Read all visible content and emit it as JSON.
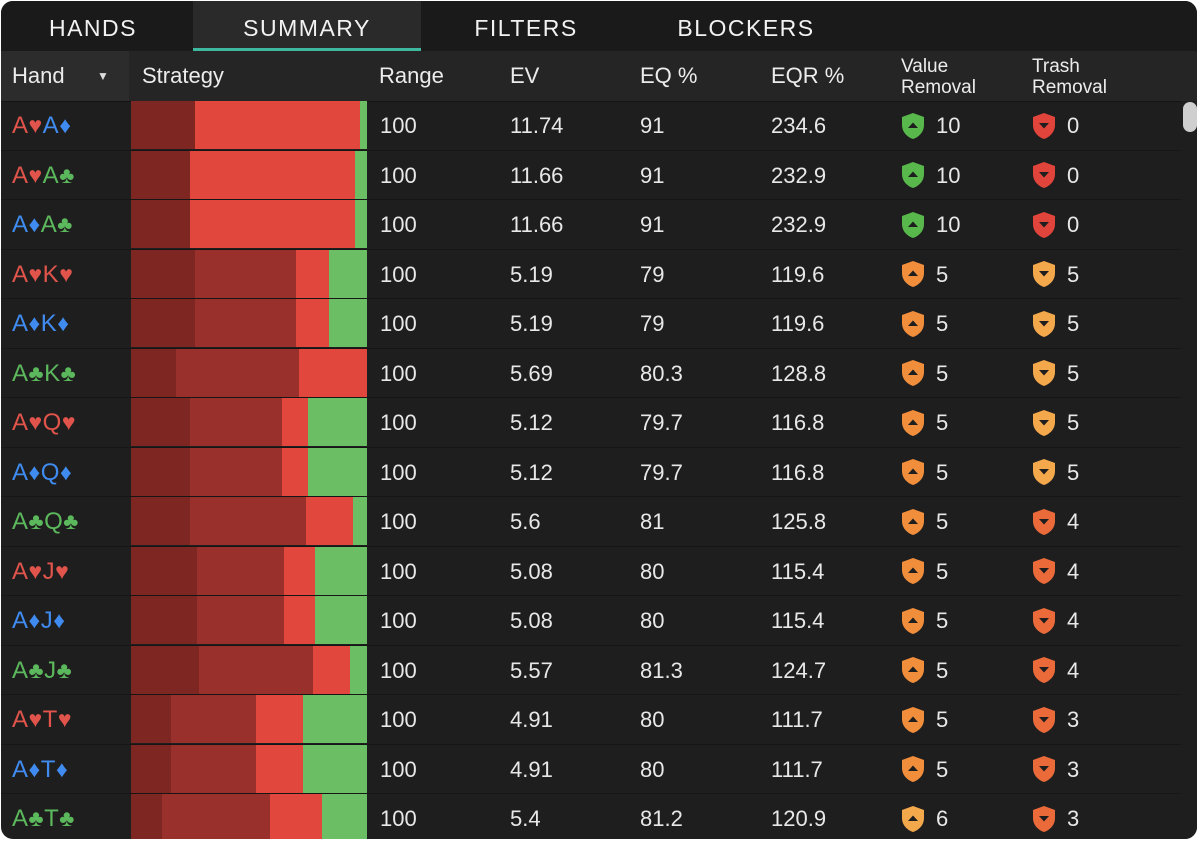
{
  "tabs": [
    {
      "label": "HANDS"
    },
    {
      "label": "SUMMARY"
    },
    {
      "label": "FILTERS"
    },
    {
      "label": "BLOCKERS"
    }
  ],
  "active_tab": "SUMMARY",
  "columns": {
    "hand": "Hand",
    "strategy": "Strategy",
    "range": "Range",
    "ev": "EV",
    "eq": "EQ %",
    "eqr": "EQR %",
    "value_removal": [
      "Value",
      "Removal"
    ],
    "trash_removal": [
      "Trash",
      "Removal"
    ]
  },
  "colors": {
    "suit_red": "#e0544b",
    "suit_blue": "#3f8bf0",
    "suit_green": "#5cb85c",
    "strat_dark": "#7d2622",
    "strat_mid": "#9a302b",
    "strat_red": "#e2473e",
    "strat_green": "#6cbe65",
    "shield_green": "#58b84b",
    "shield_orange": "#f08e3c",
    "shield_light_orange": "#f4a84c",
    "shield_red": "#e0443a",
    "shield_redorange": "#ea6a3a",
    "accent_tab": "#3fb8a0"
  },
  "rows": [
    {
      "cards": [
        {
          "r": "A",
          "s": "♥",
          "c": "red"
        },
        {
          "r": "A",
          "s": "♦",
          "c": "blue"
        }
      ],
      "strategy": [
        0.27,
        0,
        0.7,
        0.03
      ],
      "range": "100",
      "ev": "11.74",
      "eq": "91",
      "eqr": "234.6",
      "value_removal": {
        "n": "10",
        "icon": "shield-up-icon",
        "color": "shield_green"
      },
      "trash_removal": {
        "n": "0",
        "icon": "shield-down-icon",
        "color": "shield_red"
      }
    },
    {
      "cards": [
        {
          "r": "A",
          "s": "♥",
          "c": "red"
        },
        {
          "r": "A",
          "s": "♣",
          "c": "green"
        }
      ],
      "strategy": [
        0.25,
        0,
        0.7,
        0.05
      ],
      "range": "100",
      "ev": "11.66",
      "eq": "91",
      "eqr": "232.9",
      "value_removal": {
        "n": "10",
        "icon": "shield-up-icon",
        "color": "shield_green"
      },
      "trash_removal": {
        "n": "0",
        "icon": "shield-down-icon",
        "color": "shield_red"
      }
    },
    {
      "cards": [
        {
          "r": "A",
          "s": "♦",
          "c": "blue"
        },
        {
          "r": "A",
          "s": "♣",
          "c": "green"
        }
      ],
      "strategy": [
        0.25,
        0,
        0.7,
        0.05
      ],
      "range": "100",
      "ev": "11.66",
      "eq": "91",
      "eqr": "232.9",
      "value_removal": {
        "n": "10",
        "icon": "shield-up-icon",
        "color": "shield_green"
      },
      "trash_removal": {
        "n": "0",
        "icon": "shield-down-icon",
        "color": "shield_red"
      }
    },
    {
      "cards": [
        {
          "r": "A",
          "s": "♥",
          "c": "red"
        },
        {
          "r": "K",
          "s": "♥",
          "c": "red"
        }
      ],
      "strategy": [
        0.27,
        0.43,
        0.14,
        0.16
      ],
      "range": "100",
      "ev": "5.19",
      "eq": "79",
      "eqr": "119.6",
      "value_removal": {
        "n": "5",
        "icon": "shield-up-icon",
        "color": "shield_orange"
      },
      "trash_removal": {
        "n": "5",
        "icon": "shield-down-icon",
        "color": "shield_light_orange"
      }
    },
    {
      "cards": [
        {
          "r": "A",
          "s": "♦",
          "c": "blue"
        },
        {
          "r": "K",
          "s": "♦",
          "c": "blue"
        }
      ],
      "strategy": [
        0.27,
        0.43,
        0.14,
        0.16
      ],
      "range": "100",
      "ev": "5.19",
      "eq": "79",
      "eqr": "119.6",
      "value_removal": {
        "n": "5",
        "icon": "shield-up-icon",
        "color": "shield_orange"
      },
      "trash_removal": {
        "n": "5",
        "icon": "shield-down-icon",
        "color": "shield_light_orange"
      }
    },
    {
      "cards": [
        {
          "r": "A",
          "s": "♣",
          "c": "green"
        },
        {
          "r": "K",
          "s": "♣",
          "c": "green"
        }
      ],
      "strategy": [
        0.19,
        0.52,
        0.29,
        0
      ],
      "range": "100",
      "ev": "5.69",
      "eq": "80.3",
      "eqr": "128.8",
      "value_removal": {
        "n": "5",
        "icon": "shield-up-icon",
        "color": "shield_orange"
      },
      "trash_removal": {
        "n": "5",
        "icon": "shield-down-icon",
        "color": "shield_light_orange"
      }
    },
    {
      "cards": [
        {
          "r": "A",
          "s": "♥",
          "c": "red"
        },
        {
          "r": "Q",
          "s": "♥",
          "c": "red"
        }
      ],
      "strategy": [
        0.25,
        0.39,
        0.11,
        0.25
      ],
      "range": "100",
      "ev": "5.12",
      "eq": "79.7",
      "eqr": "116.8",
      "value_removal": {
        "n": "5",
        "icon": "shield-up-icon",
        "color": "shield_orange"
      },
      "trash_removal": {
        "n": "5",
        "icon": "shield-down-icon",
        "color": "shield_light_orange"
      }
    },
    {
      "cards": [
        {
          "r": "A",
          "s": "♦",
          "c": "blue"
        },
        {
          "r": "Q",
          "s": "♦",
          "c": "blue"
        }
      ],
      "strategy": [
        0.25,
        0.39,
        0.11,
        0.25
      ],
      "range": "100",
      "ev": "5.12",
      "eq": "79.7",
      "eqr": "116.8",
      "value_removal": {
        "n": "5",
        "icon": "shield-up-icon",
        "color": "shield_orange"
      },
      "trash_removal": {
        "n": "5",
        "icon": "shield-down-icon",
        "color": "shield_light_orange"
      }
    },
    {
      "cards": [
        {
          "r": "A",
          "s": "♣",
          "c": "green"
        },
        {
          "r": "Q",
          "s": "♣",
          "c": "green"
        }
      ],
      "strategy": [
        0.25,
        0.49,
        0.2,
        0.06
      ],
      "range": "100",
      "ev": "5.6",
      "eq": "81",
      "eqr": "125.8",
      "value_removal": {
        "n": "5",
        "icon": "shield-up-icon",
        "color": "shield_orange"
      },
      "trash_removal": {
        "n": "4",
        "icon": "shield-down-icon",
        "color": "shield_redorange"
      }
    },
    {
      "cards": [
        {
          "r": "A",
          "s": "♥",
          "c": "red"
        },
        {
          "r": "J",
          "s": "♥",
          "c": "red"
        }
      ],
      "strategy": [
        0.28,
        0.37,
        0.13,
        0.22
      ],
      "range": "100",
      "ev": "5.08",
      "eq": "80",
      "eqr": "115.4",
      "value_removal": {
        "n": "5",
        "icon": "shield-up-icon",
        "color": "shield_orange"
      },
      "trash_removal": {
        "n": "4",
        "icon": "shield-down-icon",
        "color": "shield_redorange"
      }
    },
    {
      "cards": [
        {
          "r": "A",
          "s": "♦",
          "c": "blue"
        },
        {
          "r": "J",
          "s": "♦",
          "c": "blue"
        }
      ],
      "strategy": [
        0.28,
        0.37,
        0.13,
        0.22
      ],
      "range": "100",
      "ev": "5.08",
      "eq": "80",
      "eqr": "115.4",
      "value_removal": {
        "n": "5",
        "icon": "shield-up-icon",
        "color": "shield_orange"
      },
      "trash_removal": {
        "n": "4",
        "icon": "shield-down-icon",
        "color": "shield_redorange"
      }
    },
    {
      "cards": [
        {
          "r": "A",
          "s": "♣",
          "c": "green"
        },
        {
          "r": "J",
          "s": "♣",
          "c": "green"
        }
      ],
      "strategy": [
        0.29,
        0.48,
        0.16,
        0.07
      ],
      "range": "100",
      "ev": "5.57",
      "eq": "81.3",
      "eqr": "124.7",
      "value_removal": {
        "n": "5",
        "icon": "shield-up-icon",
        "color": "shield_orange"
      },
      "trash_removal": {
        "n": "4",
        "icon": "shield-down-icon",
        "color": "shield_redorange"
      }
    },
    {
      "cards": [
        {
          "r": "A",
          "s": "♥",
          "c": "red"
        },
        {
          "r": "T",
          "s": "♥",
          "c": "red"
        }
      ],
      "strategy": [
        0.17,
        0.36,
        0.2,
        0.27
      ],
      "range": "100",
      "ev": "4.91",
      "eq": "80",
      "eqr": "111.7",
      "value_removal": {
        "n": "5",
        "icon": "shield-up-icon",
        "color": "shield_orange"
      },
      "trash_removal": {
        "n": "3",
        "icon": "shield-down-icon",
        "color": "shield_redorange"
      }
    },
    {
      "cards": [
        {
          "r": "A",
          "s": "♦",
          "c": "blue"
        },
        {
          "r": "T",
          "s": "♦",
          "c": "blue"
        }
      ],
      "strategy": [
        0.17,
        0.36,
        0.2,
        0.27
      ],
      "range": "100",
      "ev": "4.91",
      "eq": "80",
      "eqr": "111.7",
      "value_removal": {
        "n": "5",
        "icon": "shield-up-icon",
        "color": "shield_orange"
      },
      "trash_removal": {
        "n": "3",
        "icon": "shield-down-icon",
        "color": "shield_redorange"
      }
    },
    {
      "cards": [
        {
          "r": "A",
          "s": "♣",
          "c": "green"
        },
        {
          "r": "T",
          "s": "♣",
          "c": "green"
        }
      ],
      "strategy": [
        0.13,
        0.46,
        0.22,
        0.19
      ],
      "range": "100",
      "ev": "5.4",
      "eq": "81.2",
      "eqr": "120.9",
      "value_removal": {
        "n": "6",
        "icon": "shield-up-icon",
        "color": "shield_light_orange"
      },
      "trash_removal": {
        "n": "3",
        "icon": "shield-down-icon",
        "color": "shield_redorange"
      }
    }
  ]
}
